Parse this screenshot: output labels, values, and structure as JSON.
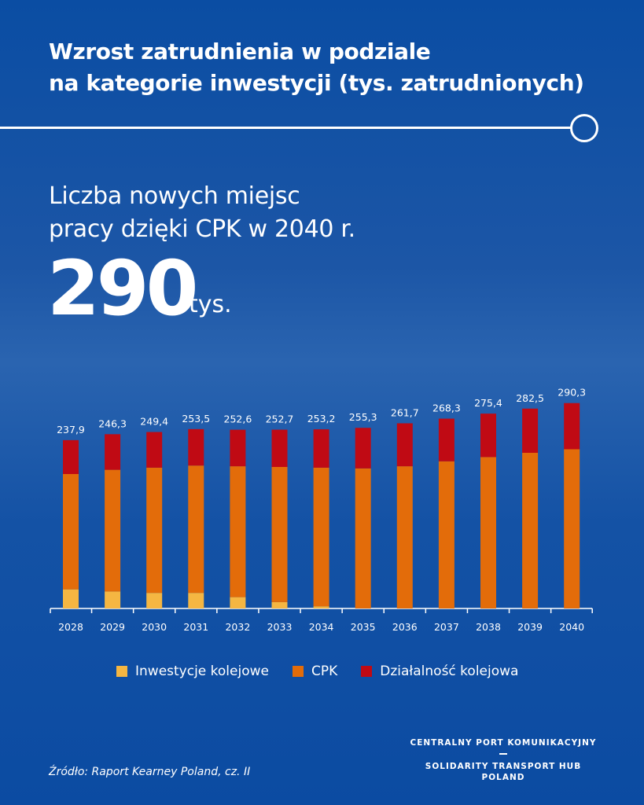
{
  "header": {
    "title_lines": [
      "Wzrost zatrudnienia w podziale",
      "na kategorie inwestycji (tys. zatrudnionych)"
    ]
  },
  "highlight": {
    "subtitle_lines": [
      "Liczba nowych miejsc",
      "pracy dzięki CPK w 2040 r."
    ],
    "value": "290",
    "unit": "tys."
  },
  "chart_data": {
    "type": "bar",
    "stacked": true,
    "categories": [
      "2028",
      "2029",
      "2030",
      "2031",
      "2032",
      "2033",
      "2034",
      "2035",
      "2036",
      "2037",
      "2038",
      "2039",
      "2040"
    ],
    "series": [
      {
        "name": "Inwestycje kolejowe",
        "color": "#f5b642",
        "values": [
          27,
          24,
          22,
          22,
          16,
          9,
          3,
          0,
          0,
          0,
          0,
          0,
          0
        ]
      },
      {
        "name": "CPK",
        "color": "#e36c0a",
        "values": [
          163,
          172,
          177,
          180,
          185,
          191,
          196,
          198,
          201,
          208,
          214,
          220,
          225
        ]
      },
      {
        "name": "Działalność kolejowa",
        "color": "#c00a14",
        "values": [
          47.9,
          50.3,
          50.4,
          51.5,
          51.6,
          52.7,
          54.2,
          57.3,
          60.7,
          60.3,
          61.4,
          62.5,
          65.3
        ]
      }
    ],
    "total_labels": [
      "237,9",
      "246,3",
      "249,4",
      "253,5",
      "252,6",
      "252,7",
      "253,2",
      "255,3",
      "261,7",
      "268,3",
      "275,4",
      "282,5",
      "290,3"
    ],
    "totals": [
      237.9,
      246.3,
      249.4,
      253.5,
      252.6,
      252.7,
      253.2,
      255.3,
      261.7,
      268.3,
      275.4,
      282.5,
      290.3
    ],
    "ylim": [
      0,
      300
    ],
    "grid": false,
    "legend_position": "bottom"
  },
  "footer": {
    "source": "Źródło: Raport Kearney Poland, cz. II",
    "brand_line1": "CENTRALNY PORT KOMUNIKACYJNY",
    "brand_line2": "SOLIDARITY TRANSPORT HUB",
    "brand_line3": "POLAND"
  }
}
